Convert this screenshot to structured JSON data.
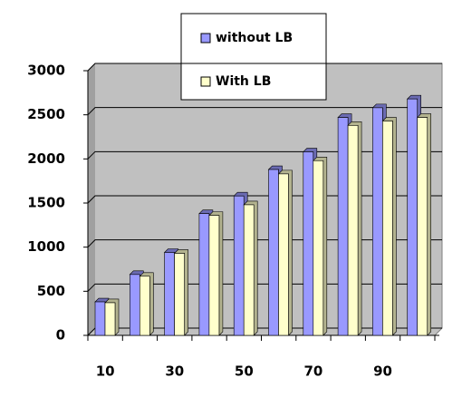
{
  "chart_data": {
    "type": "bar",
    "categories": [
      "10",
      null,
      "30",
      null,
      "50",
      null,
      "70",
      null,
      "90",
      null
    ],
    "series": [
      {
        "name": "without LB",
        "color": "#9999ff",
        "values": [
          380,
          690,
          940,
          1380,
          1580,
          1880,
          2080,
          2470,
          2580,
          2680
        ]
      },
      {
        "name": "With LB",
        "color": "#ffffcc",
        "values": [
          370,
          670,
          930,
          1360,
          1480,
          1830,
          1980,
          2380,
          2430,
          2470
        ]
      }
    ],
    "ylim": [
      0,
      3000
    ],
    "yticks": [
      0,
      500,
      1000,
      1500,
      2000,
      2500,
      3000
    ],
    "grid": true
  }
}
